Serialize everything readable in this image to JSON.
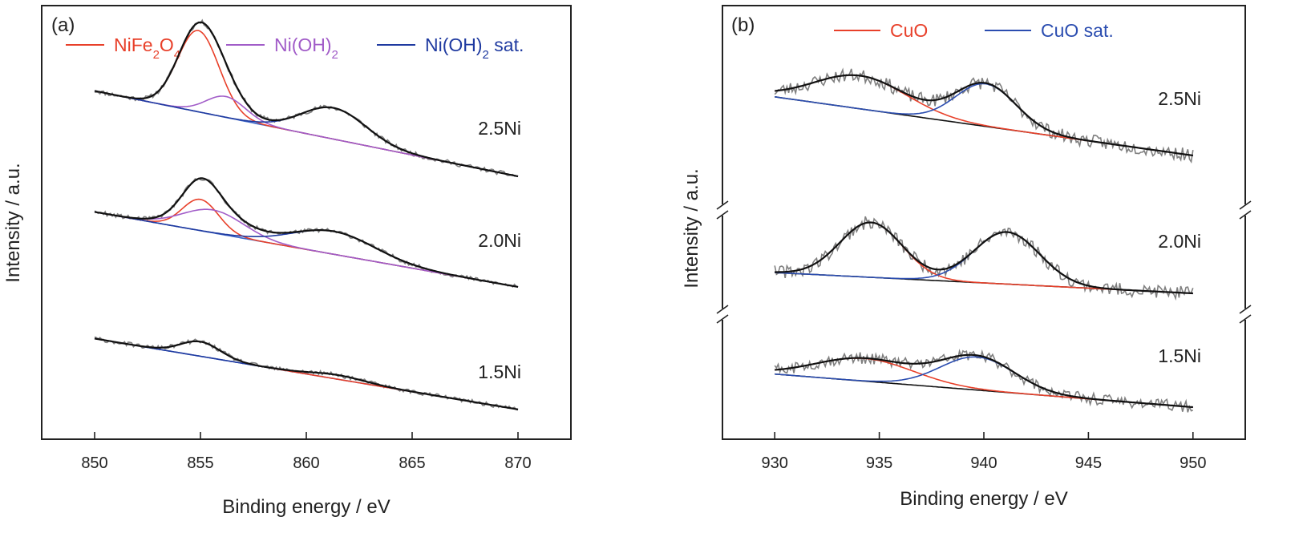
{
  "chart_data": [
    {
      "type": "line",
      "panel_label": "(a)",
      "xlabel": "Binding energy / eV",
      "ylabel": "Intensity / a.u.",
      "xlim": [
        847.5,
        872.5
      ],
      "x_ticks": [
        850,
        855,
        860,
        865,
        870
      ],
      "y_ticks_shown": false,
      "grid": false,
      "legend_position": "top",
      "colors": {
        "NiFe2O4": "#e8402a",
        "Ni(OH)2": "#a15cc8",
        "Ni(OH)2 sat.": "#1f3aa0",
        "envelope": "#111111",
        "raw": "#808080",
        "baseline": "#3a64c8"
      },
      "legend": [
        {
          "series": "NiFe2O4",
          "label_parts": [
            {
              "t": "NiFe"
            },
            {
              "t": "2",
              "sub": true
            },
            {
              "t": "O"
            },
            {
              "t": "4",
              "sub": true
            }
          ]
        },
        {
          "series": "Ni(OH)2",
          "label_parts": [
            {
              "t": "Ni(OH)"
            },
            {
              "t": "2",
              "sub": true
            }
          ]
        },
        {
          "series": "Ni(OH)2 sat.",
          "label_parts": [
            {
              "t": "Ni(OH)"
            },
            {
              "t": "2",
              "sub": true
            },
            {
              "t": " sat."
            }
          ]
        }
      ],
      "x_range": [
        850,
        870
      ],
      "traces": [
        {
          "label": "2.5Ni",
          "baseline": {
            "start": 0.82,
            "end": 0.0
          },
          "components": [
            {
              "series": "NiFe2O4",
              "center": 854.9,
              "fwhm": 2.3,
              "height": 0.78
            },
            {
              "series": "Ni(OH)2",
              "center": 856.2,
              "fwhm": 2.2,
              "height": 0.2
            },
            {
              "series": "Ni(OH)2 sat.",
              "center": 861.3,
              "fwhm": 3.6,
              "height": 0.3
            }
          ],
          "noise": 0.022
        },
        {
          "label": "2.0Ni",
          "baseline": {
            "start": 0.72,
            "end": 0.0
          },
          "components": [
            {
              "series": "NiFe2O4",
              "center": 855.0,
              "fwhm": 2.0,
              "height": 0.3
            },
            {
              "series": "Ni(OH)2",
              "center": 855.6,
              "fwhm": 3.4,
              "height": 0.22
            },
            {
              "series": "Ni(OH)2 sat.",
              "center": 861.3,
              "fwhm": 4.6,
              "height": 0.22
            }
          ],
          "noise": 0.02
        },
        {
          "label": "1.5Ni",
          "baseline": {
            "start": 0.72,
            "end": 0.04
          },
          "components": [
            {
              "series": "NiFe2O4",
              "center": 855.0,
              "fwhm": 2.2,
              "height": 0.14
            },
            {
              "series": "Ni(OH)2 sat.",
              "center": 861.5,
              "fwhm": 3.0,
              "height": 0.04
            }
          ],
          "noise": 0.02
        }
      ]
    },
    {
      "type": "line",
      "panel_label": "(b)",
      "xlabel": "Binding energy / eV",
      "ylabel": "Intensity / a.u.",
      "xlim": [
        927.5,
        952.5
      ],
      "x_ticks": [
        930,
        935,
        940,
        945,
        950
      ],
      "y_ticks_shown": false,
      "y_axis_breaks": true,
      "grid": false,
      "legend_position": "top",
      "colors": {
        "CuO": "#e8402a",
        "CuO sat.": "#2b4db0",
        "envelope": "#111111",
        "raw": "#808080",
        "baseline": "#111111"
      },
      "legend": [
        {
          "series": "CuO",
          "label_parts": [
            {
              "t": "CuO"
            }
          ]
        },
        {
          "series": "CuO sat.",
          "label_parts": [
            {
              "t": "CuO sat."
            }
          ]
        }
      ],
      "x_range": [
        930,
        950
      ],
      "traces": [
        {
          "label": "2.5Ni",
          "baseline": {
            "start": 0.62,
            "end": 0.0
          },
          "components": [
            {
              "series": "CuO",
              "center": 934.1,
              "fwhm": 5.2,
              "height": 0.35
            },
            {
              "series": "CuO sat.",
              "center": 940.1,
              "fwhm": 3.4,
              "height": 0.45
            }
          ],
          "noise": 0.07
        },
        {
          "label": "2.0Ni",
          "baseline": {
            "start": 0.22,
            "end": 0.0
          },
          "components": [
            {
              "series": "CuO",
              "center": 934.6,
              "fwhm": 3.5,
              "height": 0.58
            },
            {
              "series": "CuO sat.",
              "center": 941.1,
              "fwhm": 3.7,
              "height": 0.55
            }
          ],
          "noise": 0.07
        },
        {
          "label": "1.5Ni",
          "baseline": {
            "start": 0.35,
            "end": 0.0
          },
          "components": [
            {
              "series": "CuO",
              "center": 934.3,
              "fwhm": 5.5,
              "height": 0.24
            },
            {
              "series": "CuO sat.",
              "center": 939.7,
              "fwhm": 4.2,
              "height": 0.35
            }
          ],
          "noise": 0.06
        }
      ]
    }
  ]
}
